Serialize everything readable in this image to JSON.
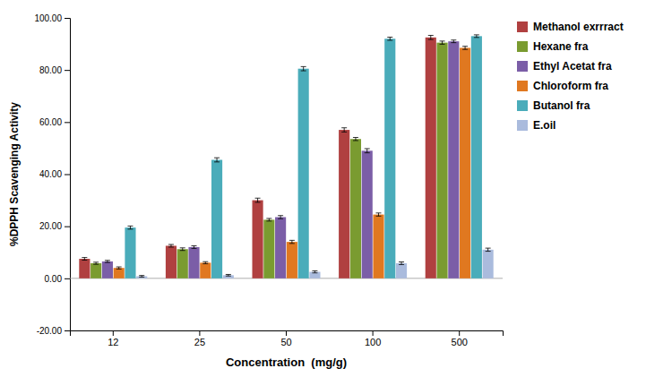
{
  "chart_data": {
    "type": "bar",
    "xlabel": "Concentration  (mg/g)",
    "ylabel": "%DPPH Scavenging Activity",
    "categories": [
      "12",
      "25",
      "50",
      "100",
      "500"
    ],
    "series": [
      {
        "name": "Methanol exrrract",
        "color": "#B04040",
        "values": [
          7.5,
          12.5,
          30.0,
          57.0,
          92.5
        ],
        "errors": [
          0.5,
          0.5,
          0.8,
          0.8,
          0.8
        ]
      },
      {
        "name": "Hexane fra",
        "color": "#7A9B30",
        "values": [
          5.8,
          11.2,
          22.5,
          53.5,
          90.5
        ],
        "errors": [
          0.4,
          0.5,
          0.5,
          0.6,
          0.6
        ]
      },
      {
        "name": "Ethyl Acetat fra",
        "color": "#7B5EA7",
        "values": [
          6.5,
          12.0,
          23.5,
          49.0,
          91.0
        ],
        "errors": [
          0.4,
          0.5,
          0.6,
          0.8,
          0.5
        ]
      },
      {
        "name": "Chloroform fra",
        "color": "#E07820",
        "values": [
          4.0,
          6.0,
          14.0,
          24.5,
          88.5
        ],
        "errors": [
          0.4,
          0.4,
          0.6,
          0.6,
          0.6
        ]
      },
      {
        "name": "Butanol fra",
        "color": "#4AACBA",
        "values": [
          19.5,
          45.5,
          80.5,
          92.0,
          93.0
        ],
        "errors": [
          0.6,
          0.8,
          0.8,
          0.6,
          0.5
        ]
      },
      {
        "name": "E.oil",
        "color": "#AABBDD",
        "values": [
          0.8,
          1.2,
          2.5,
          5.8,
          11.0
        ],
        "errors": [
          0.3,
          0.3,
          0.4,
          0.5,
          0.6
        ]
      }
    ],
    "ylim": [
      -20.0,
      100.0
    ],
    "yticks": [
      {
        "value": -20.0,
        "label": "-20.00"
      },
      {
        "value": 0.0,
        "label": "0.00"
      },
      {
        "value": 20.0,
        "label": "20.00"
      },
      {
        "value": 40.0,
        "label": "40.00"
      },
      {
        "value": 60.0,
        "label": "60.00"
      },
      {
        "value": 80.0,
        "label": "80.00"
      },
      {
        "value": 100.0,
        "label": "100.00"
      }
    ],
    "grid": false,
    "legend": "right"
  }
}
